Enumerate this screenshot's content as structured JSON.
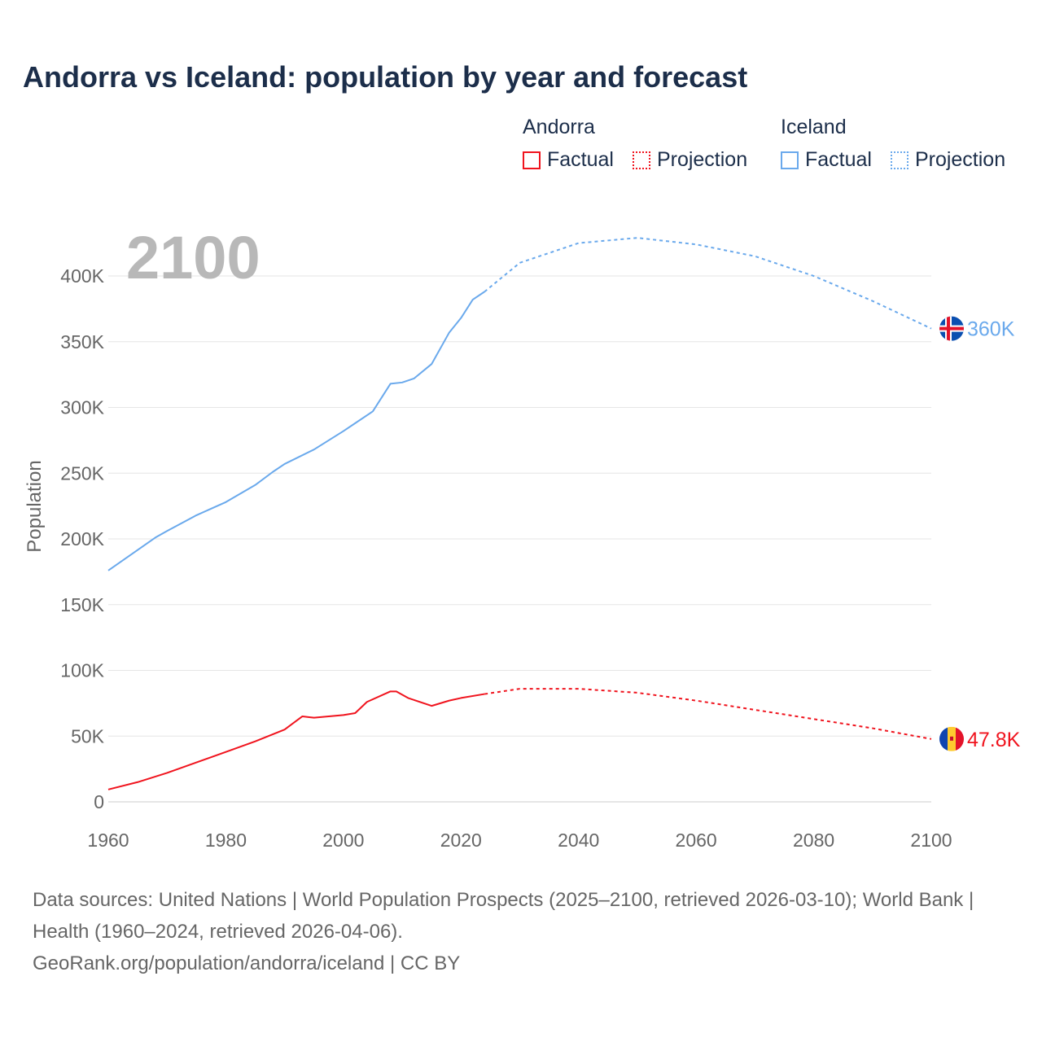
{
  "title": "Andorra vs Iceland: population by year and forecast",
  "legend": {
    "groups": [
      {
        "name": "Andorra",
        "color": "#f0141e",
        "factual": "Factual",
        "projection": "Projection"
      },
      {
        "name": "Iceland",
        "color": "#6aa9ec",
        "factual": "Factual",
        "projection": "Projection"
      }
    ]
  },
  "year_overlay": "2100",
  "chart_data": {
    "type": "line",
    "title": "Andorra vs Iceland: population by year and forecast",
    "xlabel": "",
    "ylabel": "Population",
    "xlim": [
      1960,
      2100
    ],
    "ylim": [
      0,
      400000
    ],
    "x_ticks": [
      1960,
      1980,
      2000,
      2020,
      2040,
      2060,
      2080,
      2100
    ],
    "x_tick_labels": [
      "1960",
      "1980",
      "2000",
      "2020",
      "2040",
      "2060",
      "2080",
      "2100"
    ],
    "y_ticks": [
      0,
      50000,
      100000,
      150000,
      200000,
      250000,
      300000,
      350000,
      400000
    ],
    "y_tick_labels": [
      "0",
      "50K",
      "100K",
      "150K",
      "200K",
      "250K",
      "300K",
      "350K",
      "400K"
    ],
    "grid": true,
    "legend_position": "top-right",
    "series": [
      {
        "name": "Iceland",
        "color": "#6aa9ec",
        "end_label": "360K",
        "factual": {
          "x": [
            1960,
            1968,
            1970,
            1975,
            1980,
            1985,
            1988,
            1990,
            1995,
            2000,
            2002,
            2005,
            2008,
            2010,
            2012,
            2015,
            2018,
            2020,
            2022,
            2024
          ],
          "y": [
            176000,
            201000,
            206000,
            218000,
            228000,
            241000,
            251000,
            257000,
            268000,
            282000,
            288000,
            297000,
            318000,
            319000,
            322000,
            333000,
            357000,
            368000,
            382000,
            388000
          ]
        },
        "projection": {
          "x": [
            2024,
            2030,
            2040,
            2050,
            2060,
            2070,
            2080,
            2090,
            2100
          ],
          "y": [
            388000,
            410000,
            425000,
            429000,
            424000,
            415000,
            400000,
            381000,
            360000
          ]
        }
      },
      {
        "name": "Andorra",
        "color": "#f0141e",
        "end_label": "47.8K",
        "factual": {
          "x": [
            1960,
            1965,
            1970,
            1975,
            1980,
            1985,
            1990,
            1993,
            1995,
            2000,
            2002,
            2004,
            2008,
            2009,
            2011,
            2015,
            2018,
            2020,
            2024
          ],
          "y": [
            9400,
            15000,
            22000,
            30000,
            38000,
            46000,
            55000,
            65000,
            64000,
            66000,
            67500,
            76000,
            84000,
            84000,
            79000,
            73000,
            77000,
            79000,
            82000
          ]
        },
        "projection": {
          "x": [
            2024,
            2030,
            2040,
            2050,
            2060,
            2070,
            2080,
            2090,
            2100
          ],
          "y": [
            82000,
            86000,
            86000,
            83000,
            77000,
            70000,
            63000,
            56000,
            47800
          ]
        }
      }
    ]
  },
  "footer": {
    "line1": "Data sources: United Nations | World Population Prospects (2025–2100, retrieved 2026-03-10); World Bank | Health (1960–2024, retrieved 2026-04-06).",
    "line2": "GeoRank.org/population/andorra/iceland | CC BY"
  }
}
